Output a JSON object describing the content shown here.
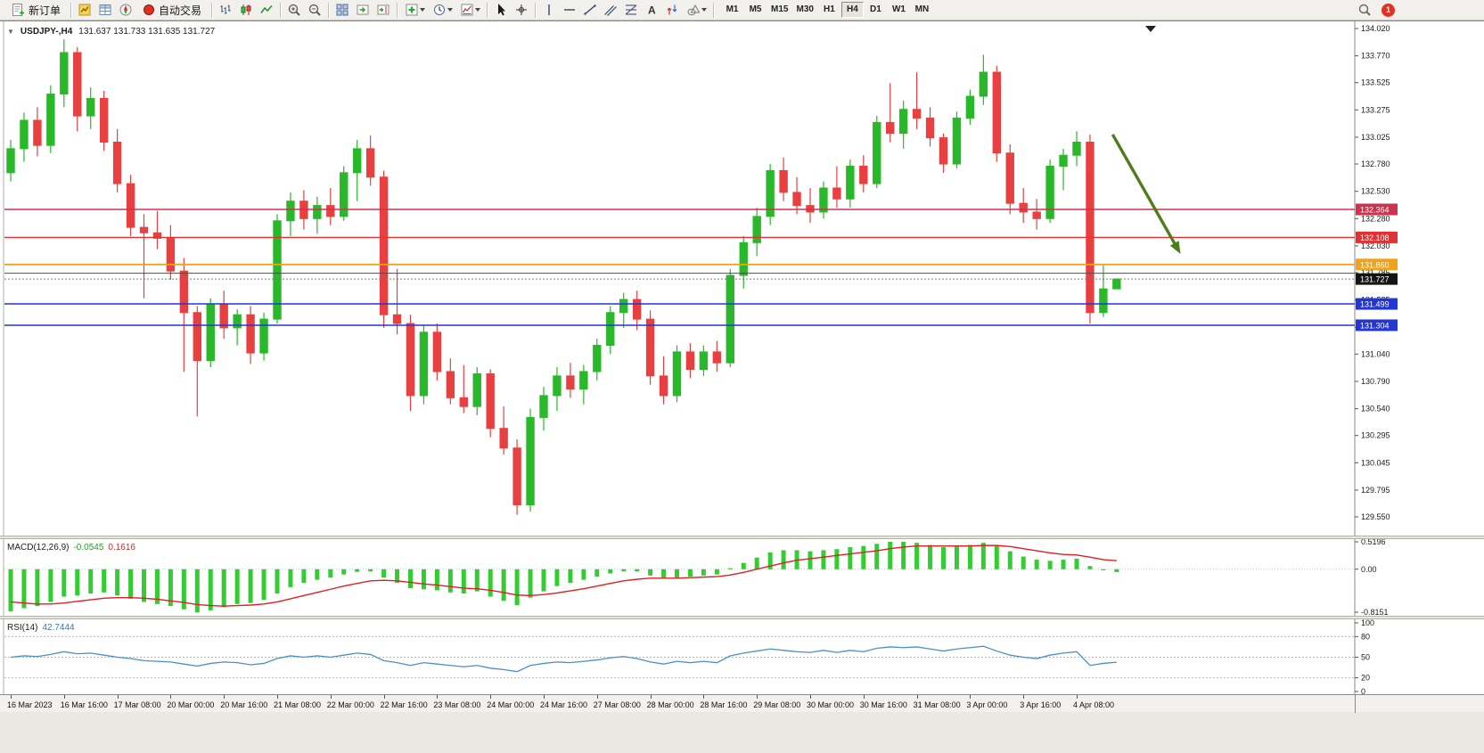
{
  "toolbar": {
    "new_order_label": "新订单",
    "auto_trading_label": "自动交易",
    "timeframes": [
      "M1",
      "M5",
      "M15",
      "M30",
      "H1",
      "H4",
      "D1",
      "W1",
      "MN"
    ],
    "active_timeframe": "H4",
    "notification_count": "1"
  },
  "symbol_info": {
    "symbol": "USDJPY-,H4",
    "ohlc": "131.637 131.733 131.635 131.727"
  },
  "indicators": {
    "macd": {
      "label": "MACD(12,26,9)",
      "value_main": "-0.0545",
      "value_signal": "0.1616"
    },
    "rsi": {
      "label": "RSI(14)",
      "value": "42.7444"
    }
  },
  "chart_data": [
    {
      "type": "candlestick",
      "title": "USDJPY- H4",
      "ylim": [
        129.55,
        134.02
      ],
      "up_color": "#29b829",
      "down_color": "#e84040",
      "y_tick_labels": [
        "134.020",
        "133.770",
        "133.525",
        "133.275",
        "133.025",
        "132.780",
        "132.530",
        "132.280",
        "132.030",
        "131.785",
        "131.535",
        "131.285",
        "131.040",
        "130.790",
        "130.540",
        "130.295",
        "130.045",
        "129.795",
        "129.550"
      ],
      "x_tick_labels": [
        "16 Mar 2023",
        "16 Mar 16:00",
        "17 Mar 08:00",
        "20 Mar 00:00",
        "20 Mar 16:00",
        "21 Mar 08:00",
        "22 Mar 00:00",
        "22 Mar 16:00",
        "23 Mar 08:00",
        "24 Mar 00:00",
        "24 Mar 16:00",
        "27 Mar 08:00",
        "28 Mar 00:00",
        "28 Mar 16:00",
        "29 Mar 08:00",
        "30 Mar 00:00",
        "30 Mar 16:00",
        "31 Mar 08:00",
        "3 Apr 00:00",
        "3 Apr 16:00",
        "4 Apr 08:00"
      ],
      "bars_per_tick": 4,
      "ohlc": [
        [
          132.7,
          133.0,
          132.62,
          132.92
        ],
        [
          132.92,
          133.25,
          132.8,
          133.18
        ],
        [
          133.18,
          133.3,
          132.85,
          132.95
        ],
        [
          132.95,
          133.5,
          132.88,
          133.42
        ],
        [
          133.42,
          133.92,
          133.3,
          133.8
        ],
        [
          133.8,
          133.85,
          133.08,
          133.22
        ],
        [
          133.22,
          133.48,
          133.1,
          133.38
        ],
        [
          133.38,
          133.45,
          132.9,
          132.98
        ],
        [
          132.98,
          133.1,
          132.52,
          132.6
        ],
        [
          132.6,
          132.68,
          132.12,
          132.2
        ],
        [
          132.2,
          132.32,
          131.55,
          132.15
        ],
        [
          132.15,
          132.35,
          132.0,
          132.1
        ],
        [
          132.1,
          132.22,
          131.72,
          131.8
        ],
        [
          131.8,
          131.92,
          130.88,
          131.42
        ],
        [
          131.42,
          131.48,
          130.47,
          130.98
        ],
        [
          130.98,
          131.55,
          130.92,
          131.5
        ],
        [
          131.5,
          131.62,
          131.18,
          131.28
        ],
        [
          131.28,
          131.45,
          131.12,
          131.4
        ],
        [
          131.4,
          131.48,
          130.95,
          131.05
        ],
        [
          131.05,
          131.42,
          130.98,
          131.36
        ],
        [
          131.36,
          132.32,
          131.32,
          132.26
        ],
        [
          132.26,
          132.52,
          132.12,
          132.44
        ],
        [
          132.44,
          132.54,
          132.18,
          132.28
        ],
        [
          132.28,
          132.48,
          132.14,
          132.4
        ],
        [
          132.4,
          132.56,
          132.22,
          132.3
        ],
        [
          132.3,
          132.76,
          132.26,
          132.7
        ],
        [
          132.7,
          133.0,
          132.44,
          132.92
        ],
        [
          132.92,
          133.04,
          132.58,
          132.66
        ],
        [
          132.66,
          132.72,
          131.28,
          131.4
        ],
        [
          131.4,
          131.82,
          131.22,
          131.32
        ],
        [
          131.32,
          131.4,
          130.52,
          130.66
        ],
        [
          130.66,
          131.3,
          130.58,
          131.24
        ],
        [
          131.24,
          131.32,
          130.8,
          130.88
        ],
        [
          130.88,
          131.0,
          130.58,
          130.64
        ],
        [
          130.64,
          130.94,
          130.5,
          130.56
        ],
        [
          130.56,
          130.92,
          130.48,
          130.86
        ],
        [
          130.86,
          130.9,
          130.28,
          130.36
        ],
        [
          130.36,
          130.56,
          130.12,
          130.18
        ],
        [
          130.18,
          130.26,
          129.57,
          129.66
        ],
        [
          129.66,
          130.54,
          129.6,
          130.46
        ],
        [
          130.46,
          130.74,
          130.34,
          130.66
        ],
        [
          130.66,
          130.92,
          130.52,
          130.84
        ],
        [
          130.84,
          130.96,
          130.64,
          130.72
        ],
        [
          130.72,
          130.94,
          130.58,
          130.88
        ],
        [
          130.88,
          131.18,
          130.8,
          131.12
        ],
        [
          131.12,
          131.48,
          131.04,
          131.42
        ],
        [
          131.42,
          131.6,
          131.28,
          131.54
        ],
        [
          131.54,
          131.62,
          131.26,
          131.36
        ],
        [
          131.36,
          131.44,
          130.76,
          130.84
        ],
        [
          130.84,
          131.02,
          130.58,
          130.66
        ],
        [
          130.66,
          131.12,
          130.6,
          131.06
        ],
        [
          131.06,
          131.14,
          130.82,
          130.9
        ],
        [
          130.9,
          131.12,
          130.84,
          131.06
        ],
        [
          131.06,
          131.16,
          130.88,
          130.96
        ],
        [
          130.96,
          131.82,
          130.92,
          131.76
        ],
        [
          131.76,
          132.12,
          131.64,
          132.06
        ],
        [
          132.06,
          132.38,
          131.94,
          132.3
        ],
        [
          132.3,
          132.78,
          132.22,
          132.72
        ],
        [
          132.72,
          132.84,
          132.44,
          132.52
        ],
        [
          132.52,
          132.66,
          132.32,
          132.4
        ],
        [
          132.4,
          132.56,
          132.24,
          132.34
        ],
        [
          132.34,
          132.62,
          132.28,
          132.56
        ],
        [
          132.56,
          132.76,
          132.38,
          132.46
        ],
        [
          132.46,
          132.82,
          132.38,
          132.76
        ],
        [
          132.76,
          132.86,
          132.52,
          132.6
        ],
        [
          132.6,
          133.22,
          132.56,
          133.16
        ],
        [
          133.16,
          133.52,
          132.98,
          133.06
        ],
        [
          133.06,
          133.36,
          132.92,
          133.28
        ],
        [
          133.28,
          133.62,
          133.1,
          133.2
        ],
        [
          133.2,
          133.3,
          132.94,
          133.02
        ],
        [
          133.02,
          133.06,
          132.7,
          132.78
        ],
        [
          132.78,
          133.26,
          132.74,
          133.2
        ],
        [
          133.2,
          133.46,
          133.14,
          133.4
        ],
        [
          133.4,
          133.78,
          133.32,
          133.62
        ],
        [
          133.62,
          133.68,
          132.8,
          132.88
        ],
        [
          132.88,
          132.96,
          132.32,
          132.42
        ],
        [
          132.42,
          132.56,
          132.24,
          132.34
        ],
        [
          132.34,
          132.46,
          132.18,
          132.28
        ],
        [
          132.28,
          132.82,
          132.24,
          132.76
        ],
        [
          132.76,
          132.92,
          132.54,
          132.86
        ],
        [
          132.86,
          133.08,
          132.76,
          132.98
        ],
        [
          132.98,
          133.05,
          131.32,
          131.42
        ],
        [
          131.42,
          131.85,
          131.38,
          131.637
        ],
        [
          131.637,
          131.733,
          131.635,
          131.727
        ]
      ],
      "horizontal_lines": [
        {
          "price": 132.364,
          "label": "132.364",
          "color": "#cc3350",
          "width": 1.5
        },
        {
          "price": 132.108,
          "label": "132.108",
          "color": "#e03232",
          "width": 1.4
        },
        {
          "price": 131.86,
          "label": "131.860",
          "color": "#efa31d",
          "width": 1.8
        },
        {
          "price": 131.78,
          "label": null,
          "color": "#4d4d4d",
          "width": 1.1
        },
        {
          "price": 131.499,
          "label": "131.499",
          "color": "#2336d4",
          "width": 1.5
        },
        {
          "price": 131.304,
          "label": "131.304",
          "color": "#2336d4",
          "width": 1.5
        }
      ],
      "bid": {
        "price": 131.727,
        "label": "131.727",
        "box_color": "#141414"
      },
      "annotation_arrow": {
        "x1_bar": 82.7,
        "price1": 133.05,
        "x2_bar": 87.5,
        "price2": 132.02,
        "color": "#4f7d1e"
      }
    },
    {
      "type": "bar",
      "title": "MACD(12,26,9)",
      "ylim": [
        -0.8151,
        0.5196
      ],
      "histogram_color": "#33cc33",
      "signal_color": "#e02020",
      "scale_labels": [
        "0.5196",
        "0.00",
        "-0.8151"
      ],
      "scale_values": [
        0.5196,
        0,
        -0.8151
      ],
      "histogram": [
        -0.8,
        -0.74,
        -0.7,
        -0.62,
        -0.52,
        -0.5,
        -0.46,
        -0.44,
        -0.5,
        -0.56,
        -0.62,
        -0.66,
        -0.7,
        -0.76,
        -0.82,
        -0.78,
        -0.72,
        -0.66,
        -0.64,
        -0.58,
        -0.46,
        -0.34,
        -0.26,
        -0.2,
        -0.16,
        -0.1,
        -0.05,
        -0.04,
        -0.16,
        -0.26,
        -0.36,
        -0.38,
        -0.4,
        -0.44,
        -0.46,
        -0.42,
        -0.52,
        -0.6,
        -0.68,
        -0.54,
        -0.42,
        -0.32,
        -0.26,
        -0.2,
        -0.14,
        -0.08,
        -0.04,
        -0.04,
        -0.12,
        -0.18,
        -0.16,
        -0.14,
        -0.12,
        -0.1,
        0.02,
        0.12,
        0.22,
        0.32,
        0.36,
        0.36,
        0.34,
        0.36,
        0.38,
        0.42,
        0.44,
        0.48,
        0.52,
        0.52,
        0.5,
        0.46,
        0.42,
        0.44,
        0.46,
        0.5,
        0.44,
        0.34,
        0.24,
        0.18,
        0.16,
        0.18,
        0.2,
        0.06,
        -0.02,
        -0.0545
      ],
      "signal": [
        -0.62,
        -0.64,
        -0.66,
        -0.66,
        -0.64,
        -0.61,
        -0.58,
        -0.55,
        -0.54,
        -0.54,
        -0.55,
        -0.57,
        -0.6,
        -0.63,
        -0.67,
        -0.69,
        -0.7,
        -0.69,
        -0.68,
        -0.66,
        -0.62,
        -0.56,
        -0.5,
        -0.44,
        -0.38,
        -0.32,
        -0.27,
        -0.22,
        -0.21,
        -0.22,
        -0.25,
        -0.28,
        -0.3,
        -0.33,
        -0.36,
        -0.37,
        -0.4,
        -0.44,
        -0.49,
        -0.5,
        -0.48,
        -0.45,
        -0.41,
        -0.37,
        -0.32,
        -0.27,
        -0.22,
        -0.19,
        -0.17,
        -0.17,
        -0.17,
        -0.16,
        -0.15,
        -0.14,
        -0.11,
        -0.06,
        0.0,
        0.06,
        0.12,
        0.17,
        0.2,
        0.23,
        0.26,
        0.29,
        0.32,
        0.35,
        0.39,
        0.42,
        0.44,
        0.44,
        0.44,
        0.44,
        0.44,
        0.45,
        0.45,
        0.43,
        0.39,
        0.35,
        0.31,
        0.28,
        0.27,
        0.23,
        0.18,
        0.1616
      ]
    },
    {
      "type": "line",
      "title": "RSI(14)",
      "ylim": [
        0,
        100
      ],
      "line_color": "#4a8fc7",
      "levels": [
        80,
        50,
        20
      ],
      "scale_labels": [
        "100",
        "80",
        "50",
        "20",
        "0"
      ],
      "scale_values": [
        100,
        80,
        50,
        20,
        0
      ],
      "values": [
        50,
        52,
        51,
        54,
        58,
        55,
        56,
        53,
        50,
        48,
        45,
        44,
        43,
        40,
        37,
        41,
        43,
        42,
        39,
        41,
        48,
        52,
        50,
        52,
        50,
        53,
        56,
        54,
        45,
        42,
        38,
        42,
        40,
        38,
        36,
        38,
        34,
        32,
        29,
        38,
        41,
        43,
        42,
        44,
        46,
        49,
        51,
        48,
        43,
        40,
        44,
        42,
        44,
        42,
        52,
        56,
        59,
        62,
        60,
        58,
        57,
        60,
        57,
        60,
        58,
        63,
        65,
        64,
        65,
        62,
        59,
        62,
        64,
        66,
        59,
        53,
        50,
        48,
        53,
        56,
        58,
        38,
        41,
        42.7444
      ]
    }
  ]
}
